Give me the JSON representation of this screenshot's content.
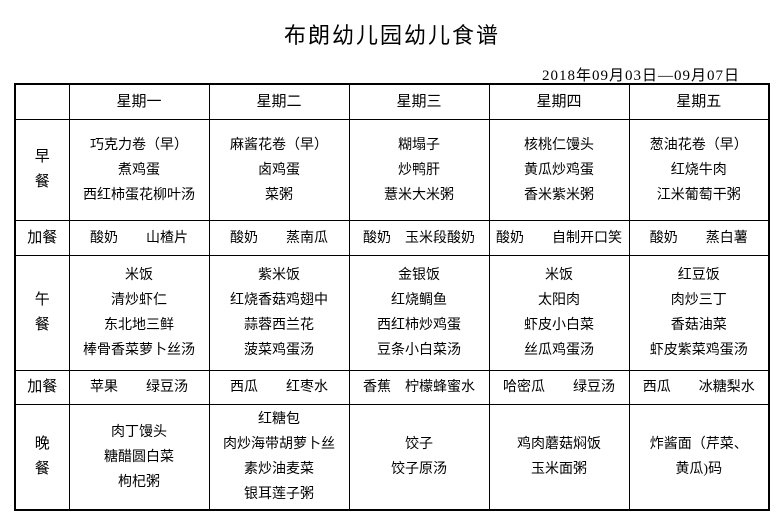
{
  "title": "布朗幼儿园幼儿食谱",
  "date_range": "2018年09月03日—09月07日",
  "table": {
    "corner": "",
    "day_headers": [
      "星期一",
      "星期二",
      "星期三",
      "星期四",
      "星期五"
    ],
    "rows": [
      {
        "label_lines": [
          "早",
          "餐"
        ],
        "cells": [
          [
            "巧克力卷（早）",
            "煮鸡蛋",
            "西红柿蛋花柳叶汤"
          ],
          [
            "麻酱花卷（早）",
            "卤鸡蛋",
            "菜粥"
          ],
          [
            "糊塌子",
            "炒鸭肝",
            "薏米大米粥"
          ],
          [
            "核桃仁馒头",
            "黄瓜炒鸡蛋",
            "香米紫米粥"
          ],
          [
            "葱油花卷（早）",
            "红烧牛肉",
            "江米葡萄干粥"
          ]
        ]
      },
      {
        "label_lines": [
          "加餐"
        ],
        "cells": [
          [
            "酸奶　　山楂片"
          ],
          [
            "酸奶　　蒸南瓜"
          ],
          [
            "酸奶　玉米段酸奶"
          ],
          [
            "酸奶　　自制开口笑"
          ],
          [
            "酸奶　　蒸白薯"
          ]
        ]
      },
      {
        "label_lines": [
          "午",
          "餐"
        ],
        "cells": [
          [
            "米饭",
            "清炒虾仁",
            "东北地三鲜",
            "棒骨香菜萝卜丝汤"
          ],
          [
            "紫米饭",
            "红烧香菇鸡翅中",
            "蒜蓉西兰花",
            "菠菜鸡蛋汤"
          ],
          [
            "金银饭",
            "红烧鲷鱼",
            "西红柿炒鸡蛋",
            "豆条小白菜汤"
          ],
          [
            "米饭",
            "太阳肉",
            "虾皮小白菜",
            "丝瓜鸡蛋汤"
          ],
          [
            "红豆饭",
            "肉炒三丁",
            "香菇油菜",
            "虾皮紫菜鸡蛋汤"
          ]
        ]
      },
      {
        "label_lines": [
          "加餐"
        ],
        "cells": [
          [
            "苹果　　绿豆汤"
          ],
          [
            "西瓜　　红枣水"
          ],
          [
            "香蕉　柠檬蜂蜜水"
          ],
          [
            "哈密瓜　　绿豆汤"
          ],
          [
            "西瓜　　冰糖梨水"
          ]
        ]
      },
      {
        "label_lines": [
          "晚",
          "餐"
        ],
        "cells": [
          [
            "肉丁馒头",
            "糖醋圆白菜",
            "枸杞粥"
          ],
          [
            "红糖包",
            "肉炒海带胡萝卜丝",
            "素炒油麦菜",
            "银耳莲子粥"
          ],
          [
            "饺子",
            "饺子原汤"
          ],
          [
            "鸡肉蘑菇焖饭",
            "玉米面粥"
          ],
          [
            "炸酱面（芹菜、",
            "黄瓜)码"
          ]
        ]
      }
    ]
  }
}
